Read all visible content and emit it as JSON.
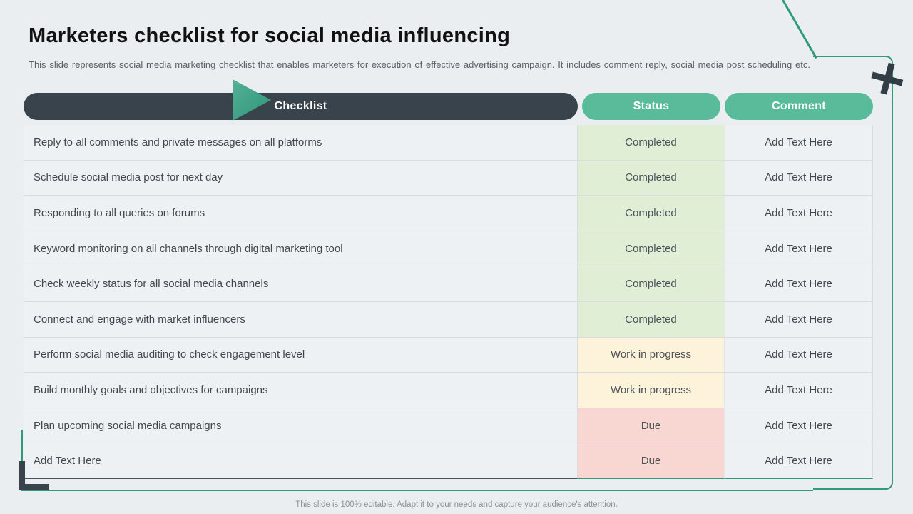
{
  "slide": {
    "title": "Marketers checklist for social media influencing",
    "subtitle": "This slide represents social media marketing checklist that enables marketers for execution of effective advertising campaign. It includes comment reply, social media post scheduling etc.",
    "footer": "This slide is 100% editable. Adapt it to your needs and capture your audience's attention."
  },
  "table": {
    "headers": [
      "Checklist",
      "Status",
      "Comment"
    ],
    "rows": [
      {
        "task": "Reply to all comments and private messages on all platforms",
        "status": "Completed",
        "status_type": "completed",
        "comment": "Add Text Here"
      },
      {
        "task": "Schedule social media post for next day",
        "status": "Completed",
        "status_type": "completed",
        "comment": "Add Text Here"
      },
      {
        "task": "Responding to all queries on forums",
        "status": "Completed",
        "status_type": "completed",
        "comment": "Add Text Here"
      },
      {
        "task": "Keyword monitoring on all channels through digital marketing tool",
        "status": "Completed",
        "status_type": "completed",
        "comment": "Add Text Here"
      },
      {
        "task": "Check weekly status for all social media channels",
        "status": "Completed",
        "status_type": "completed",
        "comment": "Add Text Here"
      },
      {
        "task": "Connect and engage with market influencers",
        "status": "Completed",
        "status_type": "completed",
        "comment": "Add Text Here"
      },
      {
        "task": "Perform social media auditing to check engagement level",
        "status": "Work in progress",
        "status_type": "progress",
        "comment": "Add Text Here"
      },
      {
        "task": "Build monthly goals and objectives for campaigns",
        "status": "Work in progress",
        "status_type": "progress",
        "comment": "Add Text Here"
      },
      {
        "task": "Plan upcoming social media campaigns",
        "status": "Due",
        "status_type": "due",
        "comment": "Add Text Here"
      },
      {
        "task": "Add Text Here",
        "status": "Due",
        "status_type": "due",
        "comment": "Add Text Here"
      }
    ]
  },
  "decorations": {
    "pointer_icon": "right-pointing-triangle",
    "plus_icon": "plus"
  },
  "colors": {
    "slide_bg": "#ebeef0",
    "header_dark": "#39434c",
    "header_green": "#5abb9b",
    "accent_teal": "#2f9b78",
    "cell_bg": "#eef1f3",
    "completed_bg": "#dfeed5",
    "progress_bg": "#fcf3da",
    "due_bg": "#f8d7d3"
  }
}
